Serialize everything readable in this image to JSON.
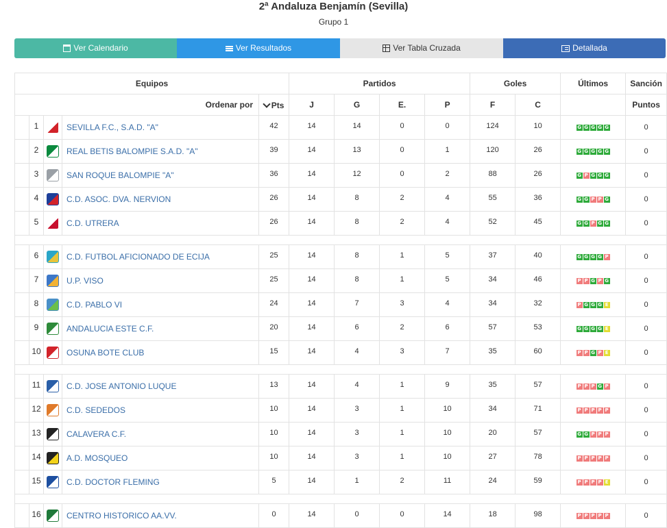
{
  "header": {
    "title": "2ª Andaluza Benjamín (Sevilla)",
    "subtitle": "Grupo 1"
  },
  "tabs": [
    {
      "label": "Ver Calendario",
      "icon": "calendar-icon"
    },
    {
      "label": "Ver Resultados",
      "icon": "list-icon"
    },
    {
      "label": "Ver Tabla Cruzada",
      "icon": "table-icon"
    },
    {
      "label": "Detallada",
      "icon": "detail-list-icon"
    }
  ],
  "colors": {
    "tab_calendario": "#4cb8a4",
    "tab_resultados": "#2f97e5",
    "tab_cruzada": "#e6e6e6",
    "tab_detallada": "#3c6cb6",
    "badge_ganado": "#2eaa3a",
    "badge_perdido": "#f07b7b",
    "badge_empate": "#e3dc32",
    "team_link": "#3a6ea8"
  },
  "table": {
    "group_headers": {
      "equipos": "Equipos",
      "partidos": "Partidos",
      "goles": "Goles",
      "ultimos": "Últimos",
      "sancion": "Sanción"
    },
    "sub_headers": {
      "ordenar": "Ordenar por",
      "pts": "Pts",
      "j": "J",
      "g": "G",
      "e": "E.",
      "p": "P",
      "f": "F",
      "c": "C",
      "puntos": "Puntos"
    },
    "rows": [
      {
        "pos": "1",
        "team": "SEVILLA F.C., S.A.D. \"A\"",
        "pts": "42",
        "j": "14",
        "g": "14",
        "e": "0",
        "p": "0",
        "f": "124",
        "c": "10",
        "last": [
          "G",
          "G",
          "G",
          "G",
          "G"
        ],
        "sancion": "0",
        "crest": [
          "#ffffff",
          "#d2232a"
        ]
      },
      {
        "pos": "2",
        "team": "REAL BETIS BALOMPIE S.A.D. \"A\"",
        "pts": "39",
        "j": "14",
        "g": "13",
        "e": "0",
        "p": "1",
        "f": "120",
        "c": "26",
        "last": [
          "G",
          "G",
          "G",
          "G",
          "G"
        ],
        "sancion": "0",
        "crest": [
          "#0a8a3e",
          "#ffffff"
        ]
      },
      {
        "pos": "3",
        "team": "SAN ROQUE BALOMPIE \"A\"",
        "pts": "36",
        "j": "14",
        "g": "12",
        "e": "0",
        "p": "2",
        "f": "88",
        "c": "26",
        "last": [
          "G",
          "P",
          "G",
          "G",
          "G"
        ],
        "sancion": "0",
        "crest": [
          "#9aa0a6",
          "#ffffff"
        ]
      },
      {
        "pos": "4",
        "team": "C.D. ASOC. DVA. NERVION",
        "pts": "26",
        "j": "14",
        "g": "8",
        "e": "2",
        "p": "4",
        "f": "55",
        "c": "36",
        "last": [
          "G",
          "G",
          "P",
          "P",
          "G"
        ],
        "sancion": "0",
        "crest": [
          "#1d3f9a",
          "#d2232a"
        ]
      },
      {
        "pos": "5",
        "team": "C.D. UTRERA",
        "pts": "26",
        "j": "14",
        "g": "8",
        "e": "2",
        "p": "4",
        "f": "52",
        "c": "45",
        "last": [
          "G",
          "G",
          "P",
          "G",
          "G"
        ],
        "sancion": "0",
        "crest": [
          "#ffffff",
          "#c8102e"
        ]
      },
      {
        "pos": "6",
        "team": "C.D. FUTBOL AFICIONADO DE ECIJA",
        "pts": "25",
        "j": "14",
        "g": "8",
        "e": "1",
        "p": "5",
        "f": "37",
        "c": "40",
        "last": [
          "G",
          "G",
          "G",
          "G",
          "P"
        ],
        "sancion": "0",
        "crest": [
          "#2aa6c8",
          "#e8c43a"
        ]
      },
      {
        "pos": "7",
        "team": "U.P. VISO",
        "pts": "25",
        "j": "14",
        "g": "8",
        "e": "1",
        "p": "5",
        "f": "34",
        "c": "46",
        "last": [
          "P",
          "P",
          "G",
          "P",
          "G"
        ],
        "sancion": "0",
        "crest": [
          "#3d78c8",
          "#f2b233"
        ]
      },
      {
        "pos": "8",
        "team": "C.D. PABLO VI",
        "pts": "24",
        "j": "14",
        "g": "7",
        "e": "3",
        "p": "4",
        "f": "34",
        "c": "32",
        "last": [
          "P",
          "G",
          "G",
          "G",
          "E"
        ],
        "sancion": "0",
        "crest": [
          "#4a90c8",
          "#6cbf4a"
        ]
      },
      {
        "pos": "9",
        "team": "ANDALUCIA ESTE C.F.",
        "pts": "20",
        "j": "14",
        "g": "6",
        "e": "2",
        "p": "6",
        "f": "57",
        "c": "53",
        "last": [
          "G",
          "G",
          "G",
          "G",
          "E"
        ],
        "sancion": "0",
        "crest": [
          "#2e8b3a",
          "#ffffff"
        ]
      },
      {
        "pos": "10",
        "team": "OSUNA BOTE CLUB",
        "pts": "15",
        "j": "14",
        "g": "4",
        "e": "3",
        "p": "7",
        "f": "35",
        "c": "60",
        "last": [
          "P",
          "P",
          "G",
          "P",
          "E"
        ],
        "sancion": "0",
        "crest": [
          "#d2232a",
          "#ffffff"
        ]
      },
      {
        "pos": "11",
        "team": "C.D. JOSE ANTONIO LUQUE",
        "pts": "13",
        "j": "14",
        "g": "4",
        "e": "1",
        "p": "9",
        "f": "35",
        "c": "57",
        "last": [
          "P",
          "P",
          "P",
          "G",
          "P"
        ],
        "sancion": "0",
        "crest": [
          "#2a5fa8",
          "#ffffff"
        ]
      },
      {
        "pos": "12",
        "team": "C.D. SEDEDOS",
        "pts": "10",
        "j": "14",
        "g": "3",
        "e": "1",
        "p": "10",
        "f": "34",
        "c": "71",
        "last": [
          "P",
          "P",
          "P",
          "P",
          "P"
        ],
        "sancion": "0",
        "crest": [
          "#e07a2a",
          "#ffffff"
        ]
      },
      {
        "pos": "13",
        "team": "CALAVERA C.F.",
        "pts": "10",
        "j": "14",
        "g": "3",
        "e": "1",
        "p": "10",
        "f": "20",
        "c": "57",
        "last": [
          "G",
          "G",
          "P",
          "P",
          "P"
        ],
        "sancion": "0",
        "crest": [
          "#222222",
          "#ffffff"
        ]
      },
      {
        "pos": "14",
        "team": "A.D. MOSQUEO",
        "pts": "10",
        "j": "14",
        "g": "3",
        "e": "1",
        "p": "10",
        "f": "27",
        "c": "78",
        "last": [
          "P",
          "P",
          "P",
          "P",
          "P"
        ],
        "sancion": "0",
        "crest": [
          "#222222",
          "#f2d21a"
        ]
      },
      {
        "pos": "15",
        "team": "C.D. DOCTOR FLEMING",
        "pts": "5",
        "j": "14",
        "g": "1",
        "e": "2",
        "p": "11",
        "f": "24",
        "c": "59",
        "last": [
          "P",
          "P",
          "P",
          "P",
          "E"
        ],
        "sancion": "0",
        "crest": [
          "#1d4fa0",
          "#ffffff"
        ]
      },
      {
        "pos": "16",
        "team": "CENTRO HISTORICO AA.VV.",
        "pts": "0",
        "j": "14",
        "g": "0",
        "e": "0",
        "p": "14",
        "f": "18",
        "c": "98",
        "last": [
          "P",
          "P",
          "P",
          "P",
          "P"
        ],
        "sancion": "0",
        "crest": [
          "#1f7a3a",
          "#ffffff"
        ]
      }
    ]
  }
}
